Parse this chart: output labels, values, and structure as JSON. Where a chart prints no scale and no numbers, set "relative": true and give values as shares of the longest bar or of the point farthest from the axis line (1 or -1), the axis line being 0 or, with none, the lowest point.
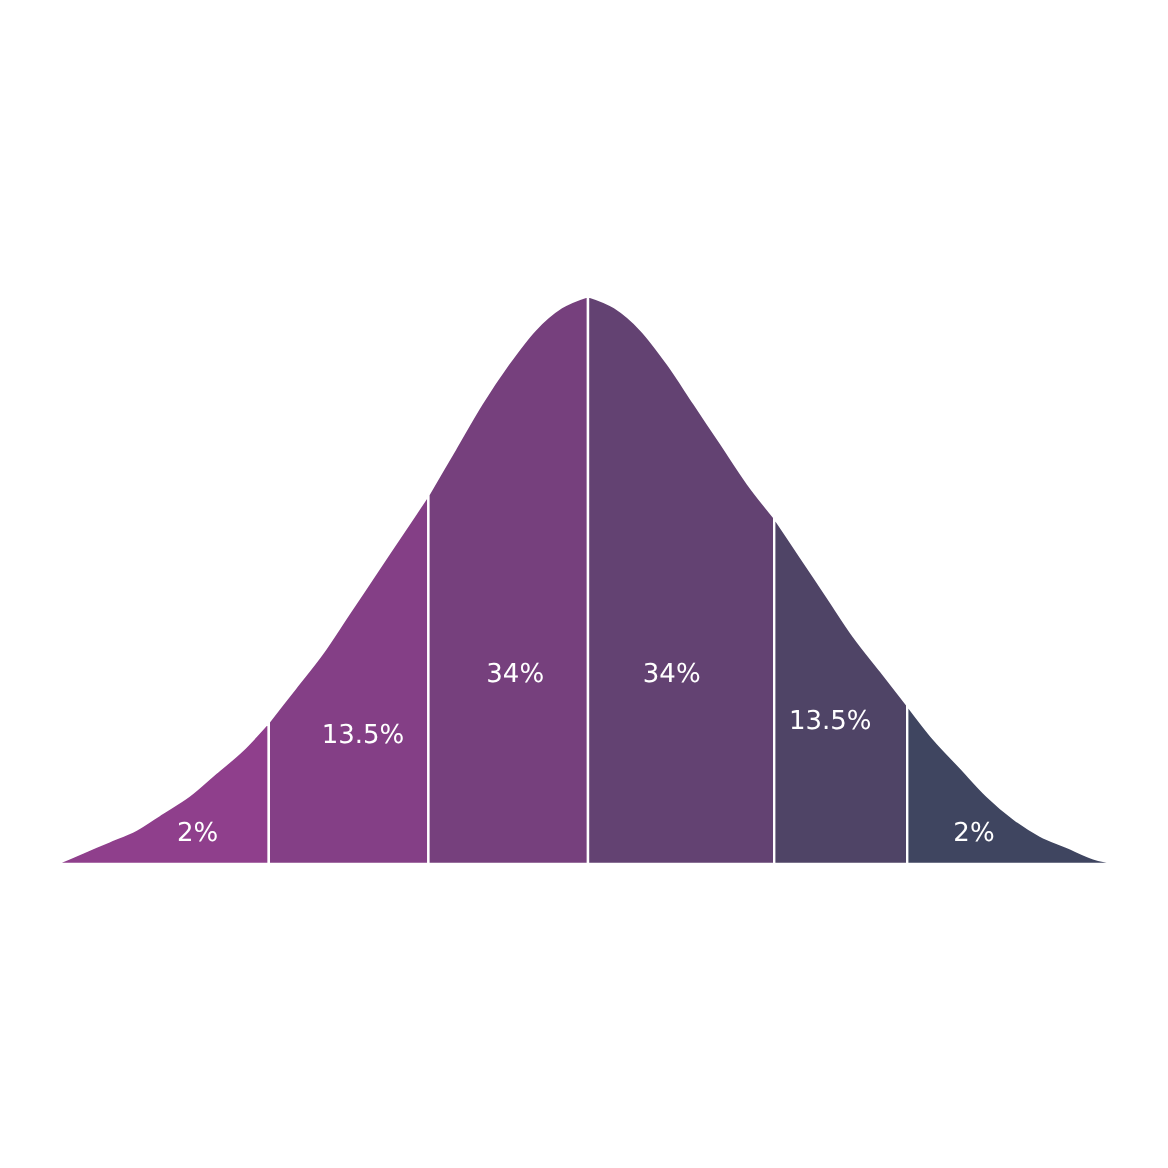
{
  "chart_data": {
    "type": "area",
    "relative": true,
    "categories": [
      null,
      null,
      null,
      null,
      null,
      null,
      null,
      null,
      null,
      null,
      null,
      null,
      null,
      null,
      null,
      null,
      null,
      null,
      null,
      null,
      null,
      null,
      null,
      null,
      null,
      null,
      null,
      null,
      null,
      null,
      null,
      null,
      null,
      null,
      null,
      null,
      null,
      null,
      null,
      null,
      null
    ],
    "series": [
      {
        "name": "2%",
        "color": "#8f3f8c",
        "values": [
          0,
          0.02,
          0.04,
          0.06,
          0.09,
          0.12,
          0.16,
          0.2,
          0.25,
          null,
          null,
          null,
          null,
          null,
          null,
          null,
          null,
          null,
          null,
          null,
          null,
          null,
          null,
          null,
          null,
          null,
          null,
          null,
          null,
          null,
          null,
          null,
          null,
          null,
          null,
          null,
          null,
          null,
          null,
          null,
          null
        ]
      },
      {
        "name": "13.5%",
        "color": "#843f86",
        "values": [
          null,
          null,
          null,
          null,
          null,
          null,
          null,
          null,
          0.25,
          0.31,
          0.37,
          0.44,
          0.51,
          0.58,
          0.65,
          null,
          null,
          null,
          null,
          null,
          null,
          null,
          null,
          null,
          null,
          null,
          null,
          null,
          null,
          null,
          null,
          null,
          null,
          null,
          null,
          null,
          null,
          null,
          null,
          null,
          null
        ]
      },
      {
        "name": "34%",
        "color": "#76407d",
        "values": [
          null,
          null,
          null,
          null,
          null,
          null,
          null,
          null,
          null,
          null,
          null,
          null,
          null,
          null,
          0.65,
          0.73,
          0.81,
          0.88,
          0.94,
          0.98,
          1,
          null,
          null,
          null,
          null,
          null,
          null,
          null,
          null,
          null,
          null,
          null,
          null,
          null,
          null,
          null,
          null,
          null,
          null,
          null,
          null
        ]
      },
      {
        "name": "34%",
        "color": "#634272",
        "values": [
          null,
          null,
          null,
          null,
          null,
          null,
          null,
          null,
          null,
          null,
          null,
          null,
          null,
          null,
          null,
          null,
          null,
          null,
          null,
          null,
          1,
          0.98,
          0.94,
          0.88,
          0.81,
          0.74,
          0.67,
          0.61,
          null,
          null,
          null,
          null,
          null,
          null,
          null,
          null,
          null,
          null,
          null,
          null,
          null
        ]
      },
      {
        "name": "13.5%",
        "color": "#4f4466",
        "values": [
          null,
          null,
          null,
          null,
          null,
          null,
          null,
          null,
          null,
          null,
          null,
          null,
          null,
          null,
          null,
          null,
          null,
          null,
          null,
          null,
          null,
          null,
          null,
          null,
          null,
          null,
          null,
          0.61,
          0.54,
          0.47,
          0.4,
          0.34,
          0.28,
          null,
          null,
          null,
          null,
          null,
          null,
          null,
          null
        ]
      },
      {
        "name": "2%",
        "color": "#3f4560",
        "values": [
          null,
          null,
          null,
          null,
          null,
          null,
          null,
          null,
          null,
          null,
          null,
          null,
          null,
          null,
          null,
          null,
          null,
          null,
          null,
          null,
          null,
          null,
          null,
          null,
          null,
          null,
          null,
          null,
          null,
          null,
          null,
          null,
          0.28,
          0.22,
          0.17,
          0.12,
          0.08,
          0.05,
          0.03,
          0.01,
          0
        ]
      }
    ]
  }
}
